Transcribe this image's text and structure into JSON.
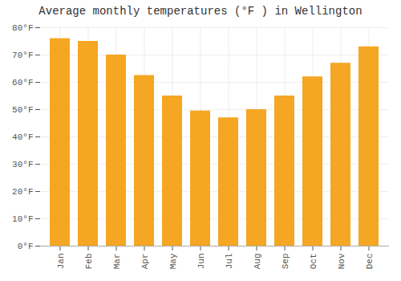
{
  "chart_data": {
    "type": "bar",
    "title": "Average monthly temperatures (°F ) in Wellington",
    "categories": [
      "Jan",
      "Feb",
      "Mar",
      "Apr",
      "May",
      "Jun",
      "Jul",
      "Aug",
      "Sep",
      "Oct",
      "Nov",
      "Dec"
    ],
    "values": [
      76,
      75,
      70,
      62.5,
      55,
      49.5,
      47,
      50,
      55,
      62,
      67,
      73
    ],
    "color": "#F5A623",
    "ylim": [
      0,
      80
    ],
    "yticks": [
      {
        "value": 0,
        "label": "0°F"
      },
      {
        "value": 10,
        "label": "10°F"
      },
      {
        "value": 20,
        "label": "20°F"
      },
      {
        "value": 30,
        "label": "30°F"
      },
      {
        "value": 40,
        "label": "40°F"
      },
      {
        "value": 50,
        "label": "50°F"
      },
      {
        "value": 60,
        "label": "60°F"
      },
      {
        "value": 70,
        "label": "70°F"
      },
      {
        "value": 80,
        "label": "80°F"
      }
    ],
    "grid": true
  }
}
